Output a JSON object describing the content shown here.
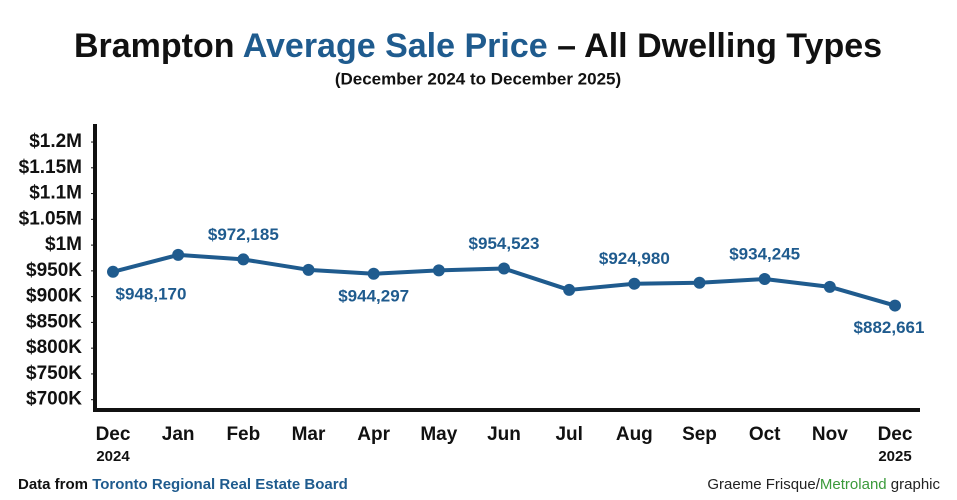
{
  "chart_data": {
    "type": "line",
    "title_parts": [
      {
        "text": "Brampton ",
        "color": "#111111"
      },
      {
        "text": "Average Sale Price",
        "color": "#1f5b8e"
      },
      {
        "text": " – All Dwelling Types",
        "color": "#111111"
      }
    ],
    "subtitle": "(December 2024 to December 2025)",
    "categories": [
      "Dec",
      "Jan",
      "Feb",
      "Mar",
      "Apr",
      "May",
      "Jun",
      "Jul",
      "Aug",
      "Sep",
      "Oct",
      "Nov",
      "Dec"
    ],
    "category_years": [
      "2024",
      null,
      null,
      null,
      null,
      null,
      null,
      null,
      null,
      null,
      null,
      null,
      "2025"
    ],
    "series": [
      {
        "name": "Average sale price",
        "color": "#1f5b8e",
        "values": [
          948170,
          981000,
          972185,
          952000,
          944297,
          951000,
          954523,
          913000,
          924980,
          927000,
          934245,
          919000,
          882661
        ],
        "value_labels": [
          "$948,170",
          null,
          "$972,185",
          null,
          "$944,297",
          null,
          "$954,523",
          null,
          "$924,980",
          null,
          "$934,245",
          null,
          "$882,661"
        ]
      }
    ],
    "ylim": [
      680000,
      1235000
    ],
    "yticks": [
      {
        "value": 700000,
        "label": "$700K"
      },
      {
        "value": 750000,
        "label": "$750K"
      },
      {
        "value": 800000,
        "label": "$800K"
      },
      {
        "value": 850000,
        "label": "$850K"
      },
      {
        "value": 900000,
        "label": "$900K"
      },
      {
        "value": 950000,
        "label": "$950K"
      },
      {
        "value": 1000000,
        "label": "$1M"
      },
      {
        "value": 1050000,
        "label": "$1.05M"
      },
      {
        "value": 1100000,
        "label": "$1.1M"
      },
      {
        "value": 1150000,
        "label": "$1.15M"
      },
      {
        "value": 1200000,
        "label": "$1.2M"
      }
    ],
    "grid": false,
    "source_parts": [
      {
        "text": "Data from ",
        "color": "#111111"
      },
      {
        "text": "Toronto Regional Real Estate Board",
        "color": "#1f5b8e"
      }
    ],
    "credit_parts": [
      {
        "text": "Graeme Frisque/",
        "color": "#222222"
      },
      {
        "text": "Metroland",
        "color": "#3a9a3a"
      },
      {
        "text": " graphic",
        "color": "#222222"
      }
    ]
  }
}
